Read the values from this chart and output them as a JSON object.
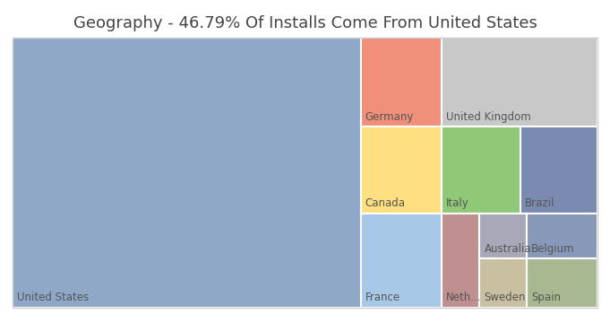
{
  "title": "Geography - 46.79% Of Installs Come From United States",
  "title_fontsize": 13,
  "background_color": "#ffffff",
  "border_color": "#cccccc",
  "label_fontsize": 8.5,
  "label_color": "#555555",
  "regions": [
    {
      "name": "United States",
      "color": "#8fa8c8"
    },
    {
      "name": "Germany",
      "color": "#f0907a"
    },
    {
      "name": "United Kingdom",
      "color": "#c8c8c8"
    },
    {
      "name": "Canada",
      "color": "#ffe080"
    },
    {
      "name": "Italy",
      "color": "#90c878"
    },
    {
      "name": "Brazil",
      "color": "#7a8ab0"
    },
    {
      "name": "France",
      "color": "#a8c8e8"
    },
    {
      "name": "Neth...",
      "color": "#c09090"
    },
    {
      "name": "Australia",
      "color": "#a8a8b8"
    },
    {
      "name": "Belgium",
      "color": "#8898b8"
    },
    {
      "name": "Sweden",
      "color": "#c8c0a0"
    },
    {
      "name": "Spain",
      "color": "#a8b890"
    }
  ],
  "layout": {
    "United States": [
      0.0,
      0.0,
      0.6,
      1.0
    ],
    "Germany": [
      0.6,
      0.335,
      0.183,
      0.665
    ],
    "United Kingdom": [
      0.783,
      0.335,
      0.217,
      0.665
    ],
    "Canada": [
      0.6,
      0.0,
      0.133,
      0.335
    ],
    "Italy": [
      0.733,
      0.062,
      0.14,
      0.273
    ],
    "Brazil": [
      0.873,
      0.062,
      0.127,
      0.273
    ],
    "France": [
      0.6,
      0.0,
      0.133,
      0.0
    ],
    "Neth...": [
      0.733,
      0.0,
      0.072,
      0.062
    ],
    "Australia": [
      0.805,
      0.062,
      0.12,
      0.0
    ],
    "Belgium": [
      0.925,
      0.062,
      0.075,
      0.0
    ],
    "Sweden": [
      0.805,
      0.0,
      0.12,
      0.062
    ],
    "Spain": [
      0.925,
      0.0,
      0.075,
      0.062
    ]
  },
  "label_anchors": {
    "United States": [
      "left",
      "bottom"
    ],
    "Germany": [
      "left",
      "bottom"
    ],
    "United Kingdom": [
      "left",
      "bottom"
    ],
    "Canada": [
      "left",
      "bottom"
    ],
    "Italy": [
      "left",
      "bottom"
    ],
    "Brazil": [
      "left",
      "bottom"
    ],
    "France": [
      "left",
      "bottom"
    ],
    "Neth...": [
      "left",
      "bottom"
    ],
    "Australia": [
      "left",
      "bottom"
    ],
    "Belgium": [
      "left",
      "bottom"
    ],
    "Sweden": [
      "left",
      "bottom"
    ],
    "Spain": [
      "left",
      "bottom"
    ]
  }
}
